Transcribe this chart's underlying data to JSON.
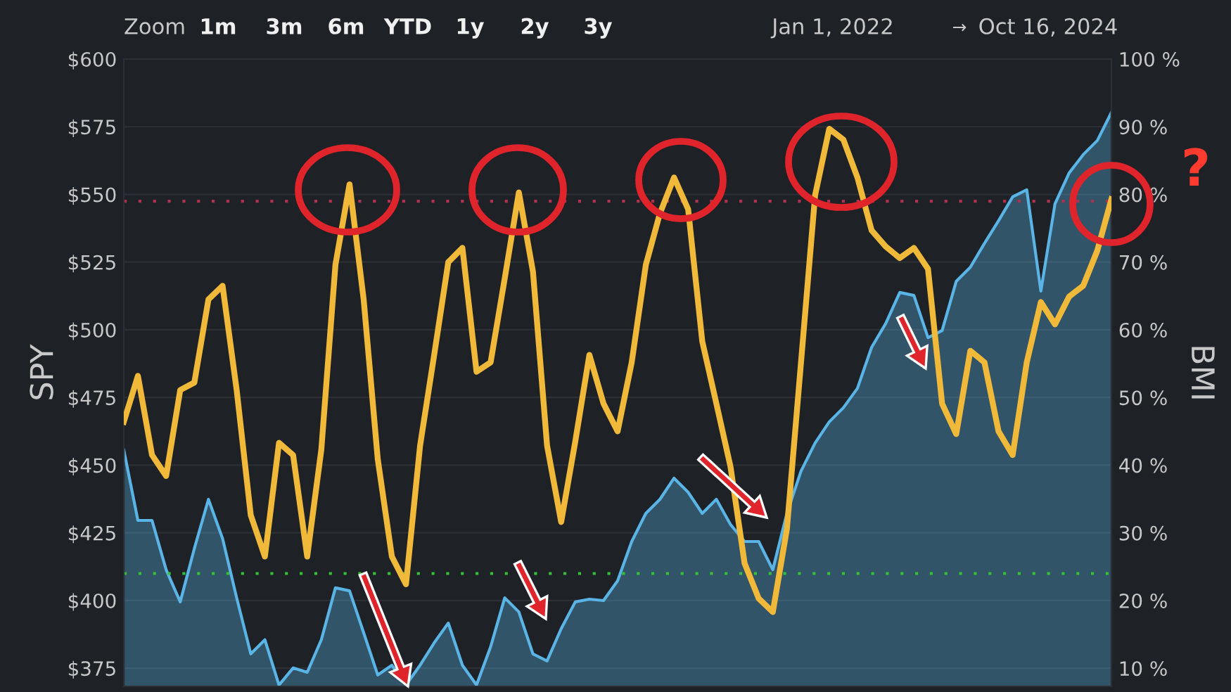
{
  "chart_data": {
    "type": "line",
    "ylabel": "SPY",
    "y2label": "BMI",
    "annotations": [
      "Zoom",
      "1m",
      "3m",
      "6m",
      "YTD",
      "1y",
      "2y",
      "3y",
      "Jan 1, 2022",
      "→",
      "Oct 16, 2024",
      "?"
    ],
    "categories": [
      null,
      null,
      null,
      null,
      null,
      null,
      null,
      null,
      null,
      null,
      null,
      null,
      null,
      null,
      null,
      null,
      null,
      null,
      null,
      null,
      null,
      null,
      null,
      null,
      null,
      null,
      null,
      null,
      null,
      null,
      null,
      null,
      null,
      null,
      null,
      null,
      null,
      null,
      null,
      null,
      null,
      null,
      null,
      null,
      null,
      null,
      null,
      null,
      null,
      null,
      null,
      null,
      null,
      null,
      null,
      null,
      null,
      null,
      null,
      null,
      null,
      null,
      null,
      null,
      null,
      null,
      null,
      null,
      null,
      null,
      null
    ],
    "series": [
      {
        "type": "area",
        "axis": "y",
        "color": "#5ab4e6",
        "values": [
          455.6,
          429.6,
          429.6,
          411.4,
          399.5,
          419.2,
          437.4,
          422.9,
          401.0,
          380.3,
          385.5,
          368.8,
          375.1,
          373.5,
          385.5,
          404.7,
          403.6,
          388.1,
          372.5,
          376.1,
          368.8,
          376.1,
          384.4,
          391.7,
          376.1,
          368.8,
          382.9,
          401.0,
          395.8,
          380.3,
          377.7,
          389.6,
          399.5,
          400.5,
          400.0,
          407.3,
          421.8,
          432.2,
          437.4,
          445.2,
          440.0,
          432.2,
          437.4,
          428.1,
          421.8,
          421.8,
          411.4,
          432.2,
          447.8,
          458.2,
          466.0,
          471.2,
          478.4,
          493.5,
          502.3,
          513.8,
          512.7,
          497.1,
          499.7,
          517.9,
          523.1,
          531.9,
          540.3,
          549.1,
          551.7,
          514.3,
          546.5,
          557.9,
          564.7,
          569.9,
          580.3
        ]
      },
      {
        "axis": "y2",
        "color": "#f0b93a",
        "values": [
          46.4,
          53.2,
          41.5,
          38.4,
          51.1,
          52.2,
          64.5,
          66.5,
          51.1,
          32.6,
          26.5,
          43.3,
          41.5,
          26.5,
          42.3,
          69.6,
          81.5,
          64.5,
          40.9,
          26.5,
          22.4,
          42.9,
          56.3,
          70.0,
          72.1,
          53.8,
          55.2,
          67.6,
          80.3,
          68.6,
          42.9,
          31.6,
          43.5,
          56.3,
          49.1,
          45.0,
          55.2,
          69.6,
          77.2,
          82.5,
          77.8,
          58.3,
          49.1,
          39.8,
          25.5,
          20.3,
          18.3,
          30.6,
          55.2,
          79.9,
          89.7,
          88.1,
          82.5,
          74.7,
          72.3,
          70.6,
          72.1,
          69.0,
          49.1,
          44.6,
          56.9,
          55.2,
          45.0,
          41.5,
          55.2,
          64.1,
          60.8,
          64.9,
          66.5,
          71.7,
          79.3
        ]
      }
    ],
    "ylim": [
      368.3,
      600
    ],
    "yticks": [
      {
        "value": 375,
        "label": "$375"
      },
      {
        "value": 400,
        "label": "$400"
      },
      {
        "value": 425,
        "label": "$425"
      },
      {
        "value": 450,
        "label": "$450"
      },
      {
        "value": 475,
        "label": "$475"
      },
      {
        "value": 500,
        "label": "$500"
      },
      {
        "value": 525,
        "label": "$525"
      },
      {
        "value": 550,
        "label": "$550"
      },
      {
        "value": 575,
        "label": "$575"
      },
      {
        "value": 600,
        "label": "$600"
      }
    ],
    "y2lim": [
      7.32,
      100
    ],
    "y2ticks": [
      {
        "value": 10,
        "label": "10 %"
      },
      {
        "value": 20,
        "label": "20 %"
      },
      {
        "value": 30,
        "label": "30 %"
      },
      {
        "value": 40,
        "label": "40 %"
      },
      {
        "value": 50,
        "label": "50 %"
      },
      {
        "value": 60,
        "label": "60 %"
      },
      {
        "value": 70,
        "label": "70 %"
      },
      {
        "value": 80,
        "label": "80 %"
      },
      {
        "value": 90,
        "label": "90 %"
      },
      {
        "value": 100,
        "label": "100 %"
      }
    ],
    "ref_lines": [
      {
        "axis": "y2",
        "value": 79,
        "color": "#b03050",
        "line_style": "dotted"
      },
      {
        "axis": "y2",
        "value": 24,
        "color": "#33c233",
        "line_style": "dotted"
      }
    ],
    "grid": "y"
  }
}
